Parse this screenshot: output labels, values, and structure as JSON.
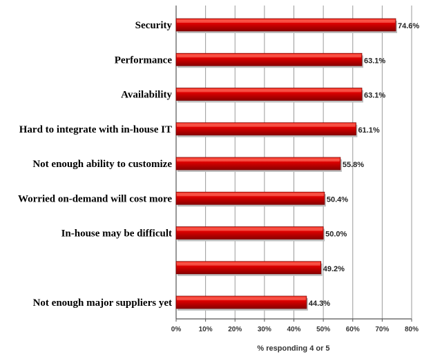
{
  "chart_data": {
    "type": "bar",
    "orientation": "horizontal",
    "categories": [
      "Security",
      "Performance",
      "Availability",
      "Hard to integrate with in-house IT",
      "Not enough ability to customize",
      "Worried on-demand will cost more",
      "In-house may be difficult",
      "",
      "Not enough major suppliers yet"
    ],
    "values": [
      74.6,
      63.1,
      63.1,
      61.1,
      55.8,
      50.4,
      50.0,
      49.2,
      44.3
    ],
    "value_labels": [
      "74.6%",
      "63.1%",
      "63.1%",
      "61.1%",
      "55.8%",
      "50.4%",
      "50.0%",
      "49.2%",
      "44.3%"
    ],
    "xlabel": "% responding 4 or 5",
    "xlim": [
      0,
      80
    ],
    "x_ticks": [
      0,
      10,
      20,
      30,
      40,
      50,
      60,
      70,
      80
    ],
    "x_tick_labels": [
      "0%",
      "10%",
      "20%",
      "30%",
      "40%",
      "50%",
      "60%",
      "70%",
      "80%"
    ],
    "grid": "vertical",
    "legend": "none",
    "colors": {
      "bar": "#dd0000",
      "bar_highlight": "#ff4a3a",
      "bar_shadow": "#7a0000",
      "grid": "#9a9a9a",
      "axis": "#555555"
    }
  }
}
